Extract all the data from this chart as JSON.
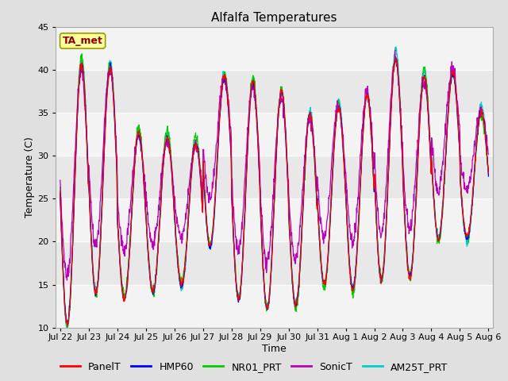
{
  "title": "Alfalfa Temperatures",
  "xlabel": "Time",
  "ylabel": "Temperature (C)",
  "ylim": [
    10,
    45
  ],
  "tick_labels": [
    "Jul 22",
    "Jul 23",
    "Jul 24",
    "Jul 25",
    "Jul 26",
    "Jul 27",
    "Jul 28",
    "Jul 29",
    "Jul 30",
    "Jul 31",
    "Aug 1",
    "Aug 2",
    "Aug 3",
    "Aug 4",
    "Aug 5",
    "Aug 6"
  ],
  "tick_positions": [
    0,
    1,
    2,
    3,
    4,
    5,
    6,
    7,
    8,
    9,
    10,
    11,
    12,
    13,
    14,
    15
  ],
  "yticks": [
    10,
    15,
    20,
    25,
    30,
    35,
    40,
    45
  ],
  "annotation_text": "TA_met",
  "annotation_color": "#8B0000",
  "annotation_bg": "#FFFF99",
  "annotation_border": "#999900",
  "series_colors": {
    "PanelT": "#FF0000",
    "HMP60": "#0000FF",
    "NR01_PRT": "#00CC00",
    "SonicT": "#BB00BB",
    "AM25T_PRT": "#00CCCC"
  },
  "legend_entries": [
    "PanelT",
    "HMP60",
    "NR01_PRT",
    "SonicT",
    "AM25T_PRT"
  ],
  "fig_bg": "#E0E0E0",
  "plot_bg": "#E8E8E8",
  "grid_color": "#FFFFFF",
  "title_fontsize": 11,
  "axis_label_fontsize": 9,
  "tick_fontsize": 8,
  "legend_fontsize": 9,
  "peaks": [
    40.5,
    40.0,
    32.5,
    32.0,
    31.5,
    39.0,
    38.5,
    37.5,
    35.0,
    35.5,
    37.0,
    41.0,
    39.0,
    39.5,
    35.0
  ],
  "mins_base": [
    10.5,
    14.0,
    13.5,
    14.0,
    15.0,
    19.5,
    13.5,
    12.0,
    12.5,
    15.0,
    14.5,
    15.5,
    16.0,
    20.5,
    20.5
  ]
}
